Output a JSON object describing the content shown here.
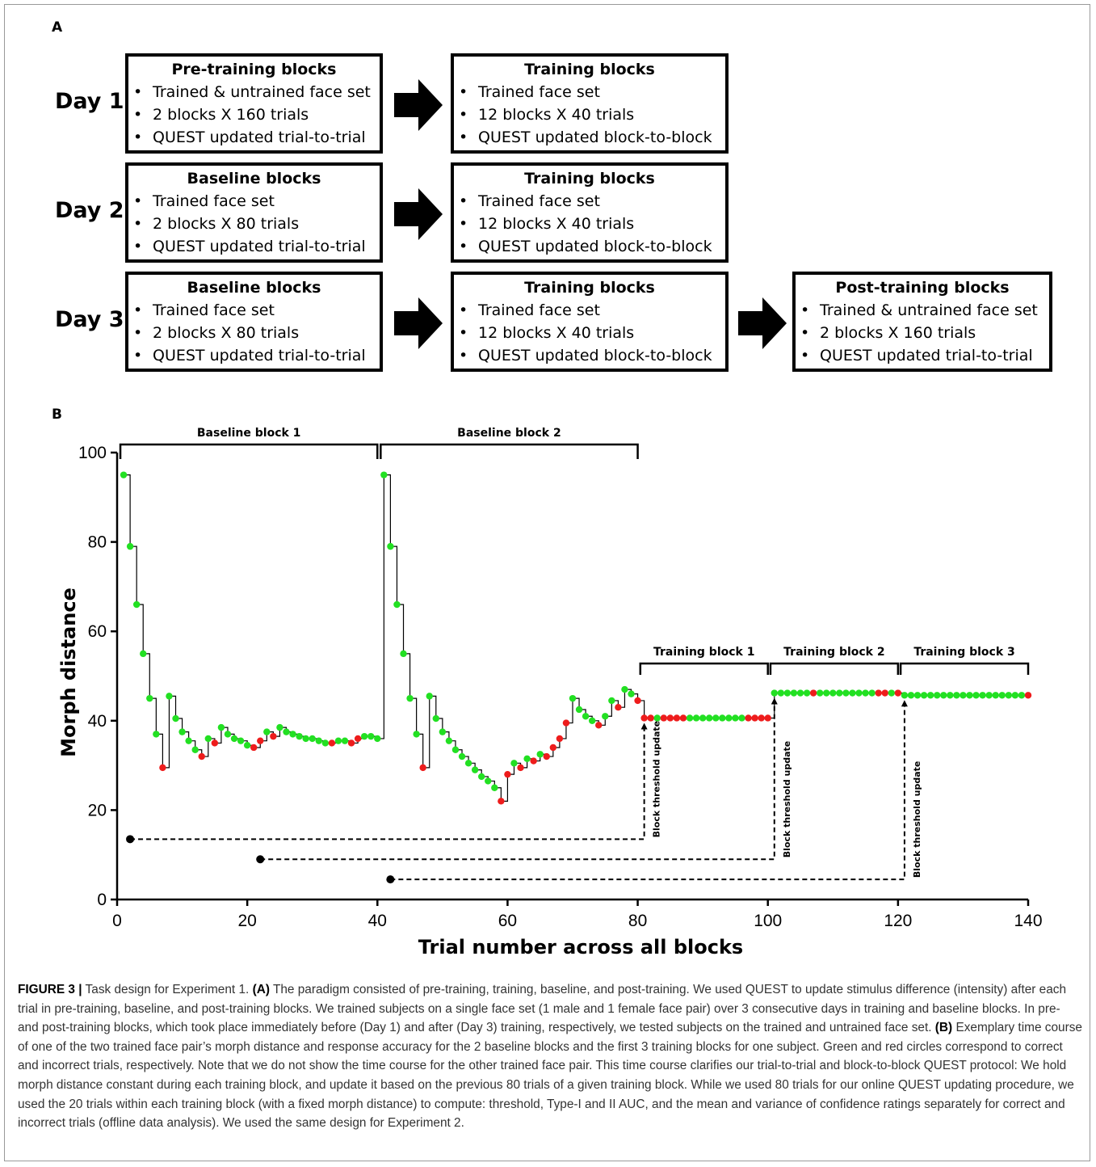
{
  "panel_a": {
    "letter": "A",
    "rows": [
      {
        "day": "Day 1",
        "boxes": [
          {
            "title": "Pre-training blocks",
            "items": [
              "Trained & untrained face set",
              "2 blocks X 160 trials",
              "QUEST updated trial-to-trial"
            ]
          },
          {
            "title": "Training blocks",
            "items": [
              "Trained face set",
              "12 blocks X 40 trials",
              "QUEST updated block-to-block"
            ]
          }
        ]
      },
      {
        "day": "Day 2",
        "boxes": [
          {
            "title": "Baseline blocks",
            "items": [
              "Trained face set",
              "2 blocks X 80 trials",
              "QUEST updated trial-to-trial"
            ]
          },
          {
            "title": "Training blocks",
            "items": [
              "Trained face set",
              "12 blocks X 40 trials",
              "QUEST updated block-to-block"
            ]
          }
        ]
      },
      {
        "day": "Day 3",
        "boxes": [
          {
            "title": "Baseline blocks",
            "items": [
              "Trained face set",
              "2 blocks X 80 trials",
              "QUEST updated trial-to-trial"
            ]
          },
          {
            "title": "Training blocks",
            "items": [
              "Trained face set",
              "12 blocks X 40 trials",
              "QUEST updated block-to-block"
            ]
          },
          {
            "title": "Post-training blocks",
            "items": [
              "Trained & untrained face set",
              "2 blocks X 160 trials",
              "QUEST updated trial-to-trial"
            ]
          }
        ]
      }
    ]
  },
  "panel_b": {
    "letter": "B"
  },
  "chart_data": {
    "type": "line",
    "style": "step line with markers (green = correct, red = incorrect)",
    "xlabel": "Trial number across all blocks",
    "ylabel": "Morph distance",
    "xlim": [
      0,
      140
    ],
    "ylim": [
      0,
      100
    ],
    "xticks": [
      0,
      20,
      40,
      60,
      80,
      100,
      120,
      140
    ],
    "yticks": [
      0,
      20,
      40,
      60,
      80,
      100
    ],
    "grid": false,
    "colors": {
      "correct": "#22e022",
      "incorrect": "#ee1c1c",
      "line": "#000000"
    },
    "block_brackets": [
      {
        "label": "Baseline block 1",
        "x_start": 1,
        "x_end": 40
      },
      {
        "label": "Baseline block 2",
        "x_start": 41,
        "x_end": 80
      },
      {
        "label": "Training block 1",
        "x_start": 81,
        "x_end": 100
      },
      {
        "label": "Training block 2",
        "x_start": 101,
        "x_end": 120
      },
      {
        "label": "Training block 3",
        "x_start": 121,
        "x_end": 140
      }
    ],
    "threshold_updates": [
      {
        "label": "Block threshold update",
        "from_trial": 1,
        "to_trial": 81,
        "y": 13.5
      },
      {
        "label": "Block threshold update",
        "from_trial": 21,
        "to_trial": 101,
        "y": 9
      },
      {
        "label": "Block threshold update",
        "from_trial": 41,
        "to_trial": 121,
        "y": 4.5
      }
    ],
    "series": [
      {
        "y": [
          95,
          79,
          66,
          55,
          45,
          37,
          29.5,
          45.5,
          40.5,
          37.5,
          35.5,
          33.5,
          32,
          36,
          35,
          38.5,
          37,
          36,
          35.5,
          34.5,
          34,
          35.5,
          37.5,
          36.5,
          38.5,
          37.5,
          37,
          36.5,
          36,
          36,
          35.5,
          35,
          35,
          35.5,
          35.5,
          35,
          36,
          36.5,
          36.5,
          36,
          95,
          79,
          66,
          55,
          45,
          37,
          29.5,
          45.5,
          40.5,
          37.5,
          35.5,
          33.5,
          32,
          30.5,
          29,
          27.5,
          26.5,
          25,
          22,
          28,
          30.5,
          29.5,
          31.5,
          31,
          32.5,
          32,
          34,
          36,
          39.5,
          45,
          42.5,
          41,
          40,
          39,
          41,
          44.5,
          43,
          47,
          46,
          44.5,
          40.6,
          40.6,
          40.6,
          40.6,
          40.6,
          40.6,
          40.6,
          40.6,
          40.6,
          40.6,
          40.6,
          40.6,
          40.6,
          40.6,
          40.6,
          40.6,
          40.6,
          40.6,
          40.6,
          40.6,
          46.2,
          46.2,
          46.2,
          46.2,
          46.2,
          46.2,
          46.2,
          46.2,
          46.2,
          46.2,
          46.2,
          46.2,
          46.2,
          46.2,
          46.2,
          46.2,
          46.2,
          46.2,
          46.2,
          46.2,
          45.7,
          45.7,
          45.7,
          45.7,
          45.7,
          45.7,
          45.7,
          45.7,
          45.7,
          45.7,
          45.7,
          45.7,
          45.7,
          45.7,
          45.7,
          45.7,
          45.7,
          45.7,
          45.7,
          45.7
        ],
        "correct": [
          1,
          1,
          1,
          1,
          1,
          1,
          0,
          1,
          1,
          1,
          1,
          1,
          0,
          1,
          0,
          1,
          1,
          1,
          1,
          1,
          0,
          0,
          1,
          0,
          1,
          1,
          1,
          1,
          1,
          1,
          1,
          1,
          0,
          1,
          1,
          0,
          0,
          1,
          1,
          1,
          1,
          1,
          1,
          1,
          1,
          1,
          0,
          1,
          1,
          1,
          1,
          1,
          1,
          1,
          1,
          1,
          1,
          1,
          0,
          0,
          1,
          0,
          1,
          0,
          1,
          0,
          0,
          0,
          0,
          1,
          1,
          1,
          1,
          0,
          1,
          1,
          0,
          1,
          1,
          0,
          0,
          0,
          1,
          0,
          0,
          0,
          0,
          1,
          1,
          1,
          1,
          1,
          1,
          1,
          1,
          1,
          0,
          0,
          0,
          0,
          1,
          1,
          1,
          1,
          1,
          1,
          0,
          1,
          1,
          1,
          1,
          1,
          1,
          1,
          1,
          1,
          0,
          0,
          1,
          0,
          1,
          1,
          1,
          1,
          1,
          1,
          1,
          1,
          1,
          1,
          1,
          1,
          1,
          1,
          1,
          1,
          1,
          1,
          1,
          0
        ]
      }
    ]
  },
  "caption": {
    "figure_label": "FIGURE 3 |",
    "segments": [
      {
        "t": " Task design for Experiment 1. ",
        "b": false
      },
      {
        "t": "(A)",
        "b": true
      },
      {
        "t": " The paradigm consisted of pre-training, training, baseline, and post-training. We used QUEST to update stimulus difference (intensity) after each trial in pre-training, baseline, and post-training blocks. We trained subjects on a single face set (1 male and 1 female face pair) over 3 consecutive days in training and baseline blocks. In pre- and post-training blocks, which took place immediately before (Day 1) and after (Day 3) training, respectively, we tested subjects on the trained and untrained face set. ",
        "b": false
      },
      {
        "t": "(B)",
        "b": true
      },
      {
        "t": " Exemplary time course of one of the two trained face pair’s morph distance and response accuracy for the 2 baseline blocks and the first 3 training blocks for one subject. Green and red circles correspond to correct and incorrect trials, respectively. Note that we do not show the time course for the other trained face pair. This time course clarifies our trial-to-trial and block-to-block QUEST protocol: We hold morph distance constant during each training block, and update it based on the previous 80 trials of a given training block. While we used 80 trials for our online QUEST updating procedure, we used the 20 trials within each training block (with a fixed morph distance) to compute: threshold, Type-I and II AUC, and the mean and variance of confidence ratings separately for correct and incorrect trials (offline data analysis). We used the same design for Experiment 2.",
        "b": false
      }
    ]
  }
}
